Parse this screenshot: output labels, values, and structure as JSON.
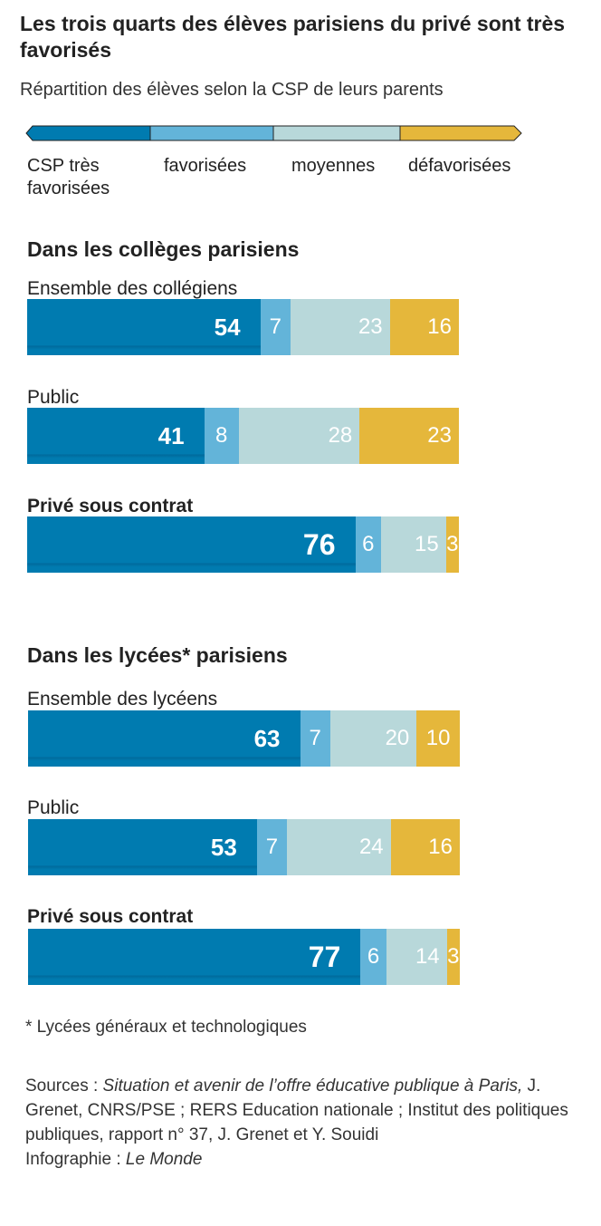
{
  "title": "Les trois quarts des élèves parisiens du privé sont très favorisés",
  "subtitle": "Répartition des élèves selon la CSP de leurs parents",
  "colors": {
    "tres_favorisees": "#007bb0",
    "favorisees": "#63b4d9",
    "moyennes": "#b8d8da",
    "defavorisees": "#e5b73b"
  },
  "legend": [
    "CSP très favorisées",
    "favorisées",
    "moyennes",
    "défavorisées"
  ],
  "footnote": "* Lycées généraux et technologiques",
  "sources": {
    "prefix": "Sources : ",
    "italic1": "Situation et avenir de l’offre éducative publique à Paris,",
    "rest1": " J. Grenet, CNRS/PSE ; RERS Education nationale ; Institut des politiques publiques, rapport n° 37, J. Grenet et Y. Souidi",
    "infog_prefix": "Infographie : ",
    "infog": "Le Monde"
  },
  "chart_data": {
    "type": "bar",
    "stacked": true,
    "orientation": "horizontal",
    "series_names": [
      "CSP très favorisées",
      "favorisées",
      "moyennes",
      "défavorisées"
    ],
    "sections": [
      {
        "title": "Dans les collèges parisiens",
        "groups": [
          {
            "label": "Ensemble des collégiens",
            "bold": false,
            "values": [
              54,
              7,
              23,
              16
            ]
          },
          {
            "label": "Public",
            "bold": false,
            "values": [
              41,
              8,
              28,
              23
            ]
          },
          {
            "label": "Privé sous contrat",
            "bold": true,
            "values": [
              76,
              6,
              15,
              3
            ]
          }
        ]
      },
      {
        "title": "Dans les lycées* parisiens",
        "groups": [
          {
            "label": "Ensemble des lycéens",
            "bold": false,
            "values": [
              63,
              7,
              20,
              10
            ]
          },
          {
            "label": "Public",
            "bold": false,
            "values": [
              53,
              7,
              24,
              16
            ]
          },
          {
            "label": "Privé sous contrat",
            "bold": true,
            "values": [
              77,
              6,
              14,
              3
            ]
          }
        ]
      }
    ]
  }
}
